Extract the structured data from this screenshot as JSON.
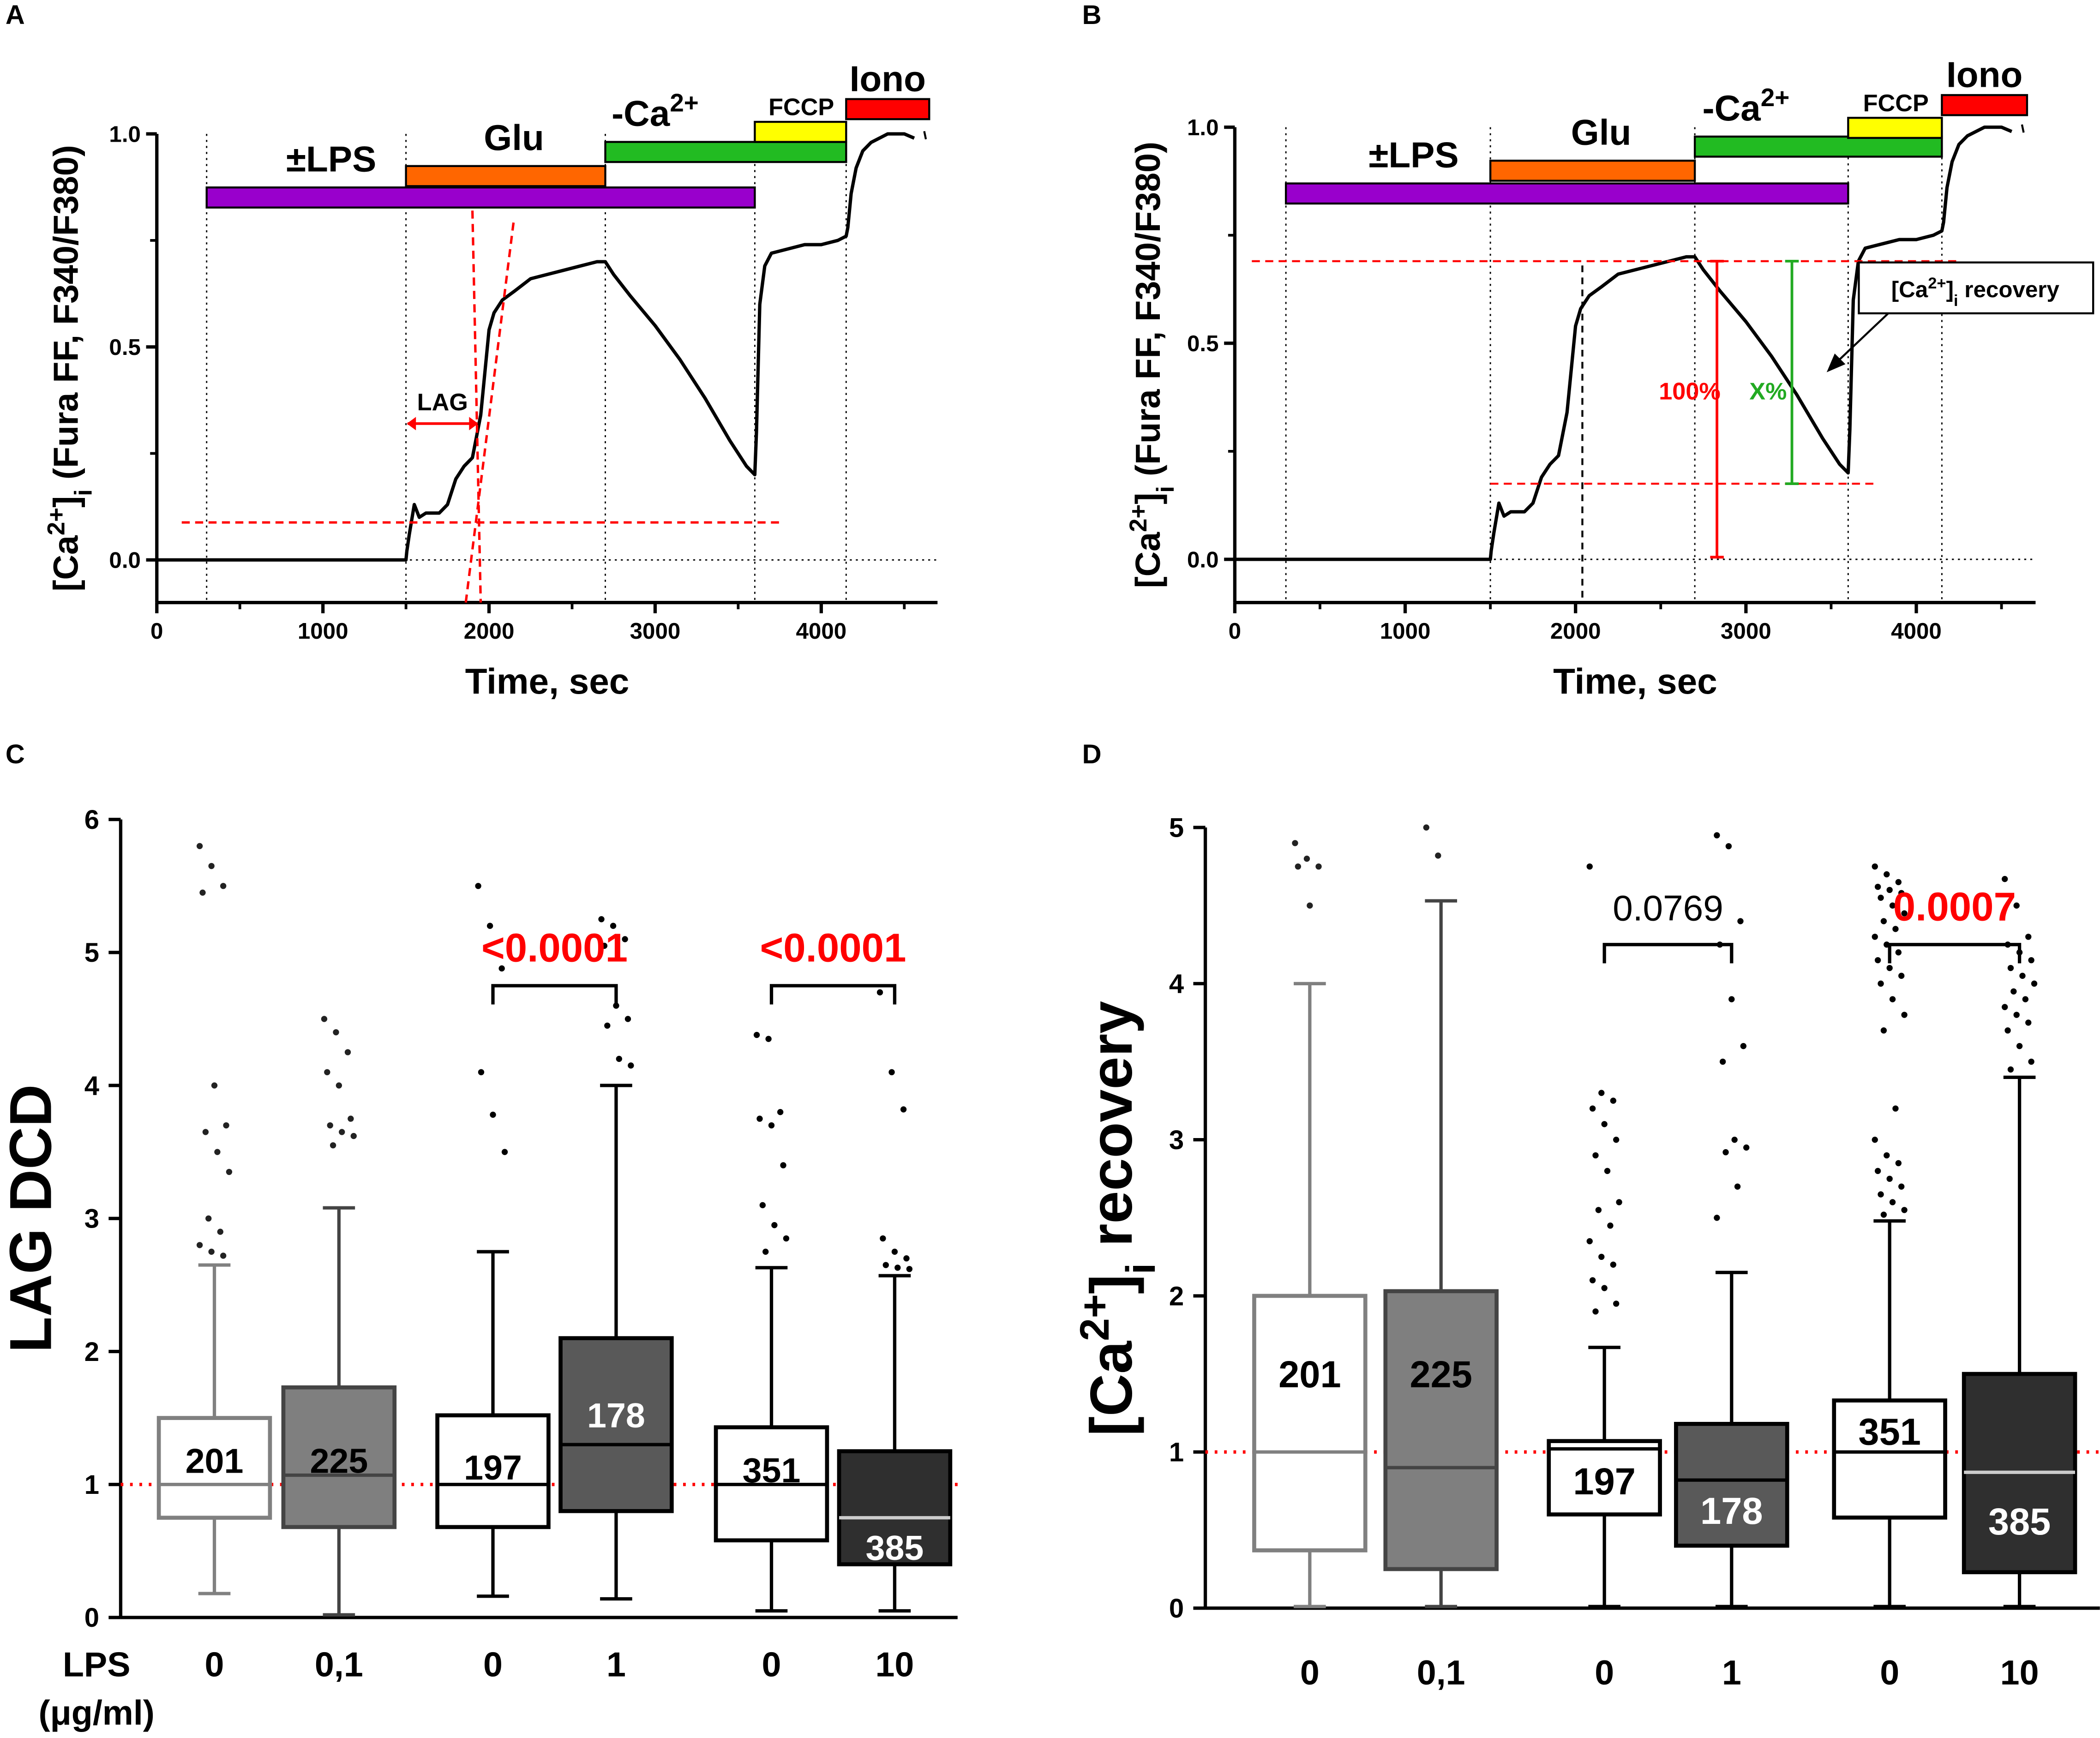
{
  "panel_letters": [
    "A",
    "B",
    "C",
    "D"
  ],
  "colors": {
    "lps": "#9900cc",
    "glu": "#ff6600",
    "noca": "#22bb22",
    "fccp": "#ffff00",
    "iono": "#ff0000",
    "red": "#ff0000",
    "green": "#22aa22",
    "box_light": "#808080",
    "box_mid": "#555555",
    "box_dark": "#333333"
  },
  "chart_data": [
    {
      "id": "A",
      "type": "line",
      "ylabel": "[Ca2+]i (Fura FF, F340/F380)",
      "xlabel": "Time, sec",
      "xlim": [
        0,
        4700
      ],
      "ylim": [
        -0.1,
        1.0
      ],
      "xticks": [
        0,
        1000,
        2000,
        3000,
        4000
      ],
      "yticks": [
        0.0,
        0.5,
        1.0
      ],
      "ytick_labels": [
        "0.0",
        "0.5",
        "1.0"
      ],
      "vlines": [
        300,
        1500,
        2700,
        3600,
        4150
      ],
      "bars": [
        {
          "label": "±LPS",
          "start": 300,
          "end": 3600,
          "color": "lps"
        },
        {
          "label": "Glu",
          "start": 1500,
          "end": 2700,
          "color": "glu"
        },
        {
          "label": "-Ca2+",
          "start": 2700,
          "end": 4150,
          "color": "noca"
        },
        {
          "label": "FCCP",
          "start": 3600,
          "end": 4150,
          "color": "fccp"
        },
        {
          "label": "Iono",
          "start": 4150,
          "end": 4650,
          "color": "iono"
        }
      ],
      "annotations": {
        "lag_label": "LAG"
      },
      "series": [
        {
          "name": "trace",
          "x": [
            0,
            300,
            1000,
            1500,
            1505,
            1520,
            1550,
            1580,
            1620,
            1700,
            1750,
            1800,
            1850,
            1900,
            1950,
            2000,
            2030,
            2080,
            2150,
            2250,
            2350,
            2450,
            2550,
            2650,
            2700,
            2750,
            2850,
            3000,
            3150,
            3300,
            3450,
            3550,
            3600,
            3610,
            3630,
            3660,
            3700,
            3800,
            3900,
            4000,
            4100,
            4150,
            4160,
            4180,
            4210,
            4250,
            4300,
            4350,
            4400,
            4450,
            4500,
            4560
          ],
          "y": [
            0.0,
            0.0,
            0.0,
            0.0,
            0.02,
            0.06,
            0.13,
            0.1,
            0.11,
            0.11,
            0.13,
            0.19,
            0.22,
            0.24,
            0.34,
            0.54,
            0.58,
            0.61,
            0.63,
            0.66,
            0.67,
            0.68,
            0.69,
            0.7,
            0.7,
            0.67,
            0.62,
            0.55,
            0.47,
            0.38,
            0.28,
            0.22,
            0.2,
            0.3,
            0.6,
            0.69,
            0.72,
            0.73,
            0.74,
            0.74,
            0.75,
            0.76,
            0.78,
            0.86,
            0.92,
            0.96,
            0.98,
            0.99,
            1.0,
            1.0,
            1.0,
            0.99
          ]
        }
      ]
    },
    {
      "id": "B",
      "type": "line",
      "ylabel": "[Ca2+]i (Fura FF, F340/F380)",
      "xlabel": "Time, sec",
      "xlim": [
        0,
        4700
      ],
      "ylim": [
        -0.1,
        1.0
      ],
      "xticks": [
        0,
        1000,
        2000,
        3000,
        4000
      ],
      "yticks": [
        0.0,
        0.5,
        1.0
      ],
      "ytick_labels": [
        "0.0",
        "0.5",
        "1.0"
      ],
      "vlines": [
        300,
        1500,
        2700,
        3600,
        4150
      ],
      "bars": [
        {
          "label": "±LPS",
          "start": 300,
          "end": 3600,
          "color": "lps"
        },
        {
          "label": "Glu",
          "start": 1500,
          "end": 2700,
          "color": "glu"
        },
        {
          "label": "-Ca2+",
          "start": 2700,
          "end": 4150,
          "color": "noca"
        },
        {
          "label": "FCCP",
          "start": 3600,
          "end": 4150,
          "color": "fccp"
        },
        {
          "label": "Iono",
          "start": 4150,
          "end": 4650,
          "color": "iono"
        }
      ],
      "annotations": {
        "pct100": "100%",
        "pctx": "X%",
        "recovery_box": "[Ca2+]i recovery"
      },
      "series": [
        {
          "name": "trace",
          "x": [
            0,
            300,
            1000,
            1500,
            1505,
            1520,
            1550,
            1580,
            1620,
            1700,
            1750,
            1800,
            1850,
            1900,
            1950,
            2000,
            2030,
            2080,
            2150,
            2250,
            2350,
            2450,
            2550,
            2650,
            2700,
            2750,
            2850,
            3000,
            3150,
            3300,
            3450,
            3550,
            3600,
            3610,
            3630,
            3660,
            3700,
            3800,
            3900,
            4000,
            4100,
            4150,
            4160,
            4180,
            4210,
            4250,
            4300,
            4350,
            4400,
            4450,
            4500,
            4560
          ],
          "y": [
            0.0,
            0.0,
            0.0,
            0.0,
            0.02,
            0.06,
            0.13,
            0.1,
            0.11,
            0.11,
            0.13,
            0.19,
            0.22,
            0.24,
            0.34,
            0.54,
            0.58,
            0.61,
            0.63,
            0.66,
            0.67,
            0.68,
            0.69,
            0.7,
            0.7,
            0.67,
            0.62,
            0.55,
            0.47,
            0.38,
            0.28,
            0.22,
            0.2,
            0.3,
            0.6,
            0.69,
            0.72,
            0.73,
            0.74,
            0.74,
            0.75,
            0.76,
            0.78,
            0.86,
            0.92,
            0.96,
            0.98,
            0.99,
            1.0,
            1.0,
            1.0,
            0.99
          ]
        }
      ]
    },
    {
      "id": "C",
      "type": "box",
      "ylabel": "LAG DCD",
      "ylim": [
        0,
        6
      ],
      "yticks": [
        0,
        1,
        2,
        3,
        4,
        5,
        6
      ],
      "x_axis_title_line1": "LPS",
      "x_axis_title_line2": "(μg/ml)",
      "categories": [
        "0",
        "0,1",
        "0",
        "1",
        "0",
        "10"
      ],
      "boxes": [
        {
          "label": "0",
          "n": "201",
          "q1": 0.75,
          "median": 1.0,
          "q3": 1.5,
          "min": 0.18,
          "max": 2.65,
          "style": "light_white",
          "outliers": [
            5.8,
            5.65,
            5.5,
            5.45,
            4.0,
            3.7,
            3.65,
            3.5,
            3.35,
            3.0,
            2.9,
            2.8,
            2.75,
            2.72
          ]
        },
        {
          "label": "0,1",
          "n": "225",
          "q1": 0.68,
          "median": 1.07,
          "q3": 1.73,
          "min": 0.02,
          "max": 3.08,
          "style": "light_fill",
          "outliers": [
            4.5,
            4.4,
            4.25,
            4.1,
            4.0,
            3.75,
            3.7,
            3.65,
            3.62,
            3.55
          ]
        },
        {
          "label": "0",
          "n": "197",
          "q1": 0.68,
          "median": 1.0,
          "q3": 1.52,
          "min": 0.16,
          "max": 2.75,
          "style": "dark_white",
          "outliers": [
            5.5,
            5.2,
            4.88,
            4.1,
            3.78,
            3.5
          ]
        },
        {
          "label": "1",
          "n": "178",
          "q1": 0.8,
          "median": 1.3,
          "q3": 2.1,
          "min": 0.14,
          "max": 4.0,
          "style": "mid_fill",
          "outliers": [
            5.25,
            5.2,
            5.1,
            5.05,
            4.6,
            4.5,
            4.45,
            4.2,
            4.15
          ]
        },
        {
          "label": "0",
          "n": "351",
          "q1": 0.58,
          "median": 1.0,
          "q3": 1.43,
          "min": 0.05,
          "max": 2.63,
          "style": "dark_white",
          "outliers": [
            4.38,
            4.35,
            3.8,
            3.75,
            3.7,
            3.4,
            3.1,
            2.95,
            2.85,
            2.75
          ]
        },
        {
          "label": "10",
          "n": "385",
          "q1": 0.4,
          "median": 0.75,
          "q3": 1.25,
          "min": 0.05,
          "max": 2.57,
          "style": "dark_fill",
          "outliers": [
            4.7,
            4.1,
            3.82,
            2.85,
            2.75,
            2.7,
            2.65,
            2.63,
            2.62
          ]
        }
      ],
      "brackets": [
        {
          "from": 2,
          "to": 3,
          "y": 4.75,
          "label": "<0.0001",
          "color": "red"
        },
        {
          "from": 4,
          "to": 5,
          "y": 4.75,
          "label": "<0.0001",
          "color": "red"
        }
      ],
      "refline": 1.0
    },
    {
      "id": "D",
      "type": "box",
      "ylabel": "[Ca2+]i recovery",
      "ylim": [
        0,
        5
      ],
      "yticks": [
        0,
        1,
        2,
        3,
        4,
        5
      ],
      "categories": [
        "0",
        "0,1",
        "0",
        "1",
        "0",
        "10"
      ],
      "boxes": [
        {
          "label": "0",
          "n": "201",
          "q1": 0.37,
          "median": 1.0,
          "q3": 2.0,
          "min": 0.01,
          "max": 4.0,
          "style": "light_white",
          "outliers": [
            4.9,
            4.8,
            4.75,
            4.75,
            4.5
          ]
        },
        {
          "label": "0,1",
          "n": "225",
          "q1": 0.25,
          "median": 0.9,
          "q3": 2.03,
          "min": 0.01,
          "max": 4.53,
          "style": "light_fill",
          "outliers": [
            5.0,
            4.82
          ]
        },
        {
          "label": "0",
          "n": "197",
          "q1": 0.6,
          "median": 1.02,
          "q3": 1.07,
          "min": 0.01,
          "max": 1.67,
          "style": "dark_white",
          "outliers": [
            4.75,
            3.3,
            3.25,
            3.2,
            3.1,
            3.0,
            2.9,
            2.8,
            2.6,
            2.55,
            2.45,
            2.35,
            2.25,
            2.2,
            2.1,
            2.05,
            1.95,
            1.9
          ]
        },
        {
          "label": "1",
          "n": "178",
          "q1": 0.4,
          "median": 0.82,
          "q3": 1.18,
          "min": 0.01,
          "max": 2.15,
          "style": "mid_fill",
          "outliers": [
            4.95,
            4.88,
            4.4,
            4.25,
            3.9,
            3.6,
            3.5,
            3.0,
            2.95,
            2.92,
            2.7,
            2.5
          ]
        },
        {
          "label": "0",
          "n": "351",
          "q1": 0.58,
          "median": 1.0,
          "q3": 1.33,
          "min": 0.01,
          "max": 2.48,
          "style": "dark_white",
          "outliers": [
            4.75,
            4.7,
            4.65,
            4.62,
            4.6,
            4.58,
            4.55,
            4.5,
            4.45,
            4.4,
            4.35,
            4.3,
            4.25,
            4.2,
            4.15,
            4.1,
            4.05,
            4.0,
            3.9,
            3.8,
            3.7,
            3.2,
            3.0,
            2.9,
            2.85,
            2.8,
            2.75,
            2.7,
            2.65,
            2.6,
            2.55,
            2.52
          ]
        },
        {
          "label": "10",
          "n": "385",
          "q1": 0.23,
          "median": 0.87,
          "q3": 1.5,
          "min": 0.01,
          "max": 3.4,
          "style": "dark_fill",
          "outliers": [
            4.67,
            4.5,
            4.3,
            4.25,
            4.2,
            4.15,
            4.1,
            4.05,
            4.0,
            3.95,
            3.9,
            3.85,
            3.8,
            3.75,
            3.7,
            3.6,
            3.5,
            3.45
          ]
        }
      ],
      "brackets": [
        {
          "from": 2,
          "to": 3,
          "y": 4.25,
          "label": "0.0769",
          "color": "black"
        },
        {
          "from": 4,
          "to": 5,
          "y": 4.25,
          "label": "0.0007",
          "color": "red"
        }
      ],
      "refline": 1.0
    }
  ]
}
